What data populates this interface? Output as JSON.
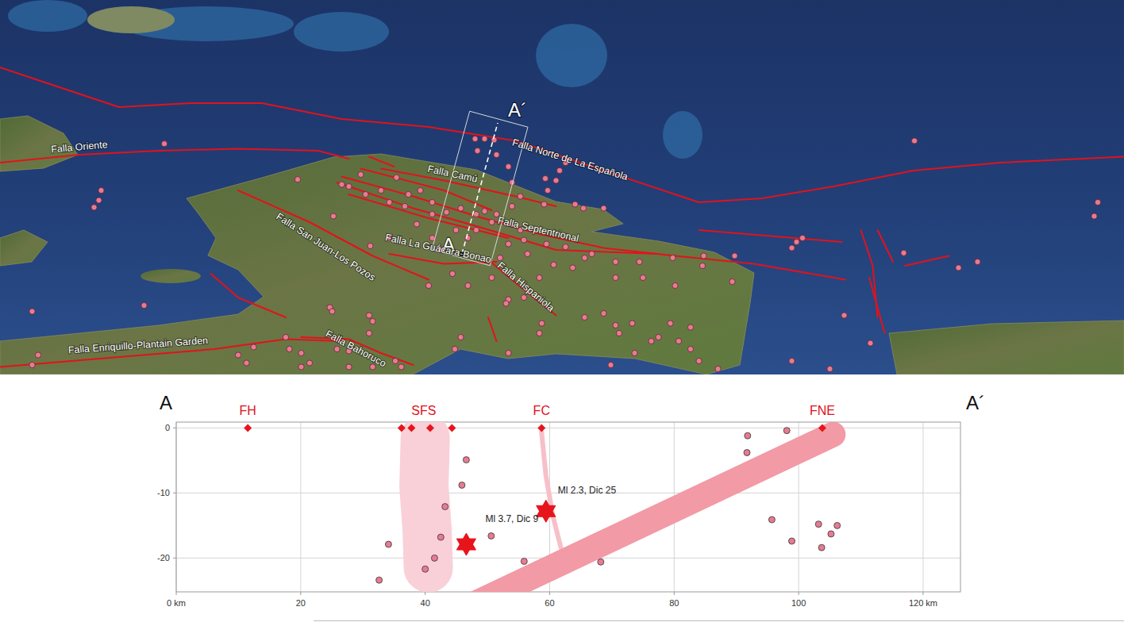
{
  "map": {
    "type": "map",
    "xlim": [
      -74.5,
      -65.06
    ],
    "ylim": [
      17.584,
      21.36
    ],
    "faults": [
      {
        "name": "Falla Norte de La Española",
        "path": [
          [
            -74.5,
            20.68
          ],
          [
            -74.1,
            20.52
          ],
          [
            -73.5,
            20.28
          ],
          [
            -72.9,
            20.32
          ],
          [
            -72.3,
            20.32
          ],
          [
            -71.63,
            20.16
          ],
          [
            -70.9,
            20.08
          ],
          [
            -70.17,
            19.94
          ],
          [
            -69.43,
            19.64
          ],
          [
            -68.63,
            19.32
          ],
          [
            -68.1,
            19.36
          ],
          [
            -67.5,
            19.48
          ],
          [
            -66.83,
            19.64
          ],
          [
            -66.1,
            19.72
          ],
          [
            -65.06,
            19.78
          ]
        ]
      },
      {
        "name": "Falla Oriente",
        "path": [
          [
            -74.5,
            19.72
          ],
          [
            -73.83,
            19.8
          ],
          [
            -73.17,
            19.84
          ],
          [
            -72.5,
            19.86
          ],
          [
            -71.83,
            19.84
          ],
          [
            -71.57,
            19.76
          ]
        ]
      },
      {
        "path": [
          [
            -71.4,
            19.78
          ],
          [
            -71.19,
            19.68
          ]
        ]
      },
      {
        "name": "Falla Camú",
        "path": [
          [
            -71.3,
            19.66
          ],
          [
            -70.77,
            19.54
          ],
          [
            -70.17,
            19.38
          ],
          [
            -69.83,
            19.28
          ]
        ]
      },
      {
        "name": "Falla Septentrional",
        "path": [
          [
            -71.63,
            19.58
          ],
          [
            -71.03,
            19.38
          ],
          [
            -70.5,
            19.18
          ],
          [
            -69.97,
            19.0
          ],
          [
            -69.43,
            18.86
          ],
          [
            -68.83,
            18.78
          ],
          [
            -68.17,
            18.7
          ],
          [
            -67.4,
            18.54
          ]
        ]
      },
      {
        "path": [
          [
            -71.67,
            19.52
          ],
          [
            -71.03,
            19.26
          ],
          [
            -70.5,
            19.08
          ],
          [
            -69.83,
            18.84
          ],
          [
            -68.97,
            18.8
          ]
        ]
      },
      {
        "path": [
          [
            -71.57,
            19.4
          ],
          [
            -70.9,
            19.16
          ],
          [
            -70.23,
            18.96
          ]
        ]
      },
      {
        "path": [
          [
            -71.47,
            19.66
          ],
          [
            -70.77,
            19.44
          ],
          [
            -70.37,
            19.24
          ]
        ]
      },
      {
        "name": "Falla San Juan-Los Pozos",
        "path": [
          [
            -72.5,
            19.44
          ],
          [
            -71.9,
            19.12
          ],
          [
            -71.37,
            18.78
          ],
          [
            -70.9,
            18.54
          ]
        ]
      },
      {
        "name": "Falla La Guácara-Bonao",
        "path": [
          [
            -71.23,
            18.8
          ],
          [
            -70.77,
            18.7
          ],
          [
            -70.33,
            18.72
          ]
        ]
      },
      {
        "name": "Falla Hispaniola",
        "path": [
          [
            -70.38,
            18.72
          ],
          [
            -70.1,
            18.44
          ],
          [
            -69.83,
            18.18
          ]
        ]
      },
      {
        "name": "Falla Enriquillo-Plantain Garden",
        "path": [
          [
            -74.5,
            17.66
          ],
          [
            -73.7,
            17.74
          ],
          [
            -72.7,
            17.84
          ],
          [
            -72.1,
            17.94
          ],
          [
            -71.63,
            17.92
          ]
        ]
      },
      {
        "name": "Falla Bahoruco",
        "path": [
          [
            -71.97,
            17.96
          ],
          [
            -71.57,
            17.94
          ],
          [
            -71.3,
            17.8
          ],
          [
            -71.03,
            17.68
          ]
        ]
      },
      {
        "path": [
          [
            -72.73,
            18.6
          ],
          [
            -72.5,
            18.36
          ],
          [
            -72.1,
            18.16
          ]
        ]
      },
      {
        "path": [
          [
            -68.63,
            19.04
          ],
          [
            -67.83,
            18.96
          ],
          [
            -67.43,
            18.92
          ]
        ]
      },
      {
        "path": [
          [
            -67.27,
            19.04
          ],
          [
            -67.17,
            18.68
          ],
          [
            -67.13,
            18.16
          ]
        ]
      },
      {
        "path": [
          [
            -67.13,
            19.04
          ],
          [
            -67.0,
            18.72
          ]
        ]
      },
      {
        "path": [
          [
            -66.9,
            18.68
          ],
          [
            -66.53,
            18.78
          ]
        ]
      },
      {
        "path": [
          [
            -67.2,
            18.56
          ],
          [
            -67.07,
            18.0
          ]
        ]
      },
      {
        "path": [
          [
            -70.4,
            18.16
          ],
          [
            -70.33,
            17.92
          ]
        ]
      }
    ],
    "epicenters": {
      "lon": [
        -73.12,
        -73.65,
        -73.67,
        -73.71,
        -72.0,
        -74.23,
        -74.18,
        -74.23,
        -73.29,
        -72.43,
        -72.5,
        -72.37,
        -72.1,
        -72.07,
        -71.97,
        -71.97,
        -71.9,
        -71.73,
        -71.71,
        -71.4,
        -71.37,
        -71.4,
        -71.67,
        -71.57,
        -71.37,
        -71.18,
        -71.13,
        -71.57,
        -71.7,
        -71.63,
        -71.57,
        -71.47,
        -71.3,
        -71.43,
        -71.17,
        -71.23,
        -71.07,
        -71.1,
        -70.97,
        -70.87,
        -70.87,
        -71.0,
        -70.75,
        -70.63,
        -70.5,
        -70.43,
        -70.33,
        -70.37,
        -70.5,
        -70.67,
        -70.87,
        -70.8,
        -71.23,
        -71.39,
        -70.51,
        -70.43,
        -70.35,
        -70.49,
        -70.33,
        -70.23,
        -70.2,
        -70.13,
        -69.93,
        -69.92,
        -69.83,
        -69.8,
        -69.75,
        -69.9,
        -69.67,
        -69.6,
        -69.43,
        -70.2,
        -70.1,
        -70.23,
        -70.3,
        -70.07,
        -69.91,
        -69.75,
        -69.59,
        -69.53,
        -69.33,
        -69.13,
        -68.85,
        -68.59,
        -68.33,
        -68.6,
        -67.81,
        -67.85,
        -67.76,
        -66.82,
        -65.28,
        -65.31,
        -66.91,
        -66.45,
        -66.29,
        -67.41,
        -67.19,
        -69.85,
        -69.97,
        -69.69,
        -69.33,
        -69.1,
        -68.83,
        -70.23,
        -70.25,
        -70.1,
        -69.95,
        -69.59,
        -69.43,
        -69.33,
        -69.19,
        -69.3,
        -69.03,
        -68.97,
        -68.8,
        -68.7,
        -68.87,
        -68.63,
        -68.47,
        -68.7,
        -69.37,
        -69.17,
        -67.85,
        -67.53,
        -70.63,
        -70.68,
        -70.23,
        -69.97,
        -70.7,
        -70.9,
        -70.57,
        -70.37,
        -70.13,
        -70.57,
        -68.35
      ],
      "lat": [
        19.91,
        19.44,
        19.34,
        19.27,
        19.55,
        18.22,
        17.78,
        17.68,
        18.28,
        17.7,
        17.78,
        17.86,
        17.96,
        17.84,
        17.8,
        17.66,
        17.7,
        18.26,
        18.22,
        18.18,
        18.12,
        18.0,
        17.84,
        17.82,
        17.66,
        17.72,
        17.66,
        17.66,
        19.18,
        19.5,
        19.48,
        19.6,
        19.44,
        19.4,
        19.57,
        19.32,
        19.4,
        19.28,
        19.44,
        19.32,
        19.2,
        19.1,
        19.22,
        19.26,
        19.2,
        19.23,
        19.2,
        19.12,
        19.04,
        19.04,
        18.96,
        18.84,
        18.96,
        18.88,
        19.96,
        19.96,
        19.95,
        19.84,
        19.8,
        19.68,
        19.52,
        19.38,
        19.3,
        19.56,
        19.54,
        19.64,
        19.72,
        19.44,
        19.3,
        19.26,
        19.26,
        19.28,
        18.94,
        18.9,
        18.76,
        18.8,
        18.9,
        18.87,
        18.76,
        18.8,
        18.72,
        18.72,
        18.76,
        18.78,
        18.78,
        18.68,
        18.92,
        18.86,
        18.96,
        19.94,
        19.32,
        19.18,
        18.81,
        18.66,
        18.72,
        18.18,
        17.9,
        18.69,
        18.56,
        18.66,
        18.56,
        18.56,
        18.48,
        18.34,
        18.3,
        18.36,
        18.1,
        18.16,
        18.2,
        18.08,
        18.1,
        18.0,
        17.92,
        17.96,
        17.92,
        18.06,
        18.1,
        17.72,
        17.64,
        17.84,
        17.68,
        17.8,
        17.72,
        17.64,
        17.96,
        17.84,
        17.8,
        18.0,
        18.6,
        18.48,
        18.96,
        18.56,
        19.04,
        18.48,
        18.52
      ]
    },
    "section": {
      "start_label": "A",
      "end_label": "A´",
      "start": [
        -70.62,
        18.8
      ],
      "end": [
        -70.32,
        20.12
      ]
    }
  },
  "chart_data": {
    "type": "scatter",
    "xlim": [
      0,
      126
    ],
    "ylim": [
      -25.2,
      0.9
    ],
    "xticks": [
      {
        "value": 0,
        "label": "0 km"
      },
      20,
      40,
      60,
      80,
      100,
      {
        "value": 120,
        "label": "120 km"
      }
    ],
    "yticks": [
      0,
      -10,
      -20
    ],
    "grid": true,
    "x": [
      46.6,
      45.9,
      43.2,
      42.5,
      41.5,
      40.0,
      34.1,
      32.6,
      50.6,
      55.9,
      68.2,
      91.8,
      91.7,
      98.1,
      95.7,
      98.9,
      103.2,
      103.7,
      105.2,
      106.2
    ],
    "values": [
      -4.9,
      -8.8,
      -12.1,
      -16.8,
      -20.0,
      -21.7,
      -17.9,
      -23.4,
      -16.6,
      -20.5,
      -20.6,
      -1.2,
      -3.8,
      -0.4,
      -14.1,
      -17.4,
      -14.8,
      -18.4,
      -16.3,
      -15.0
    ],
    "surface_faults": [
      {
        "label": "FH",
        "x": [
          11.5
        ]
      },
      {
        "label": "SFS",
        "x": [
          36.2,
          37.8,
          40.8,
          44.3
        ]
      },
      {
        "label": "FC",
        "x": [
          58.7
        ]
      },
      {
        "label": "FNE",
        "x": [
          103.8
        ]
      }
    ],
    "events": [
      {
        "x": 46.6,
        "depth": -17.9,
        "label": "Ml 3.7, Dic 9"
      },
      {
        "x": 59.4,
        "depth": -12.8,
        "label": "Ml 2.3, Dic 25"
      }
    ],
    "fault_zones": [
      {
        "color": "#f9d0d8",
        "path": [
          [
            40.0,
            -1.5
          ],
          [
            39.8,
            -9.0
          ],
          [
            40.3,
            -15.5
          ],
          [
            40.5,
            -21.5
          ]
        ]
      },
      {
        "color": "#f7c0c9",
        "path": [
          [
            58.7,
            -0.7
          ],
          [
            59.4,
            -7.4
          ],
          [
            60.5,
            -13.5
          ],
          [
            61.8,
            -18.4
          ]
        ]
      },
      {
        "color": "#f29aa5",
        "path": [
          [
            105.5,
            -1.0
          ],
          [
            47.6,
            -27.2
          ]
        ]
      }
    ]
  }
}
